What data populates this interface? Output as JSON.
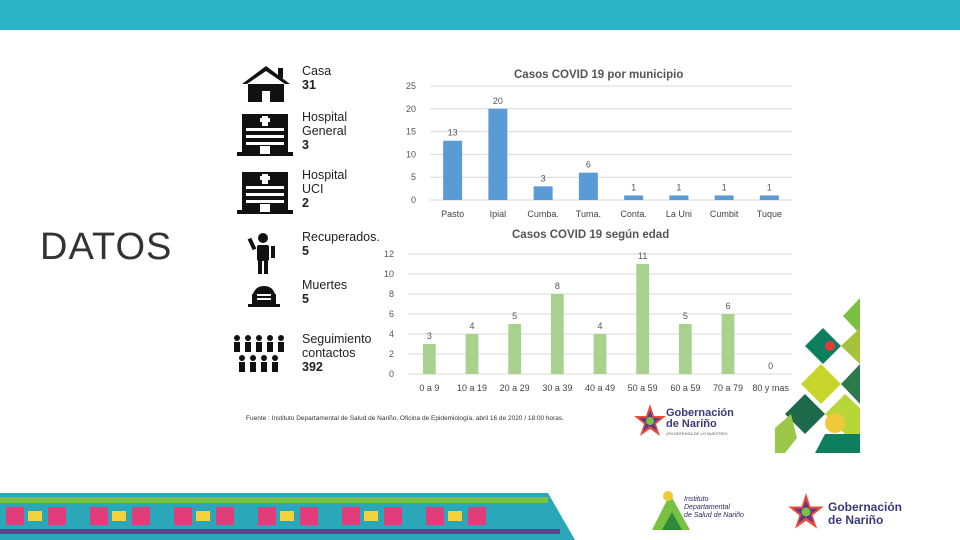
{
  "slide": {
    "title": "DATOS"
  },
  "stats": [
    {
      "icon": "house-icon",
      "label": "Casa",
      "value": "31"
    },
    {
      "icon": "hospital-icon",
      "label": "Hospital\nGeneral",
      "value": "3"
    },
    {
      "icon": "hospital-icon",
      "label": "Hospital\nUCI",
      "value": "2"
    },
    {
      "icon": "person-icon",
      "label": "Recuperados.",
      "value": "5"
    },
    {
      "icon": "tombstone-icon",
      "label": "Muertes",
      "value": "5"
    },
    {
      "icon": "group-icon",
      "label": "Seguimiento\ncontactos",
      "value": "392"
    }
  ],
  "chart_data": [
    {
      "type": "bar",
      "title": "Casos COVID 19 por municipio",
      "categories": [
        "Pasto",
        "Ipial",
        "Cumba.",
        "Tuma.",
        "Conta.",
        "La Uni",
        "Cumbit",
        "Tuque"
      ],
      "values": [
        13,
        20,
        3,
        6,
        1,
        1,
        1,
        1
      ],
      "ylim": [
        0,
        25
      ],
      "yticks": [
        0,
        5,
        10,
        15,
        20,
        25
      ],
      "color": "#5b9bd5",
      "grid": true,
      "legend": "none"
    },
    {
      "type": "bar",
      "title": "Casos COVID 19  según edad",
      "categories": [
        "0 a 9",
        "10 a 19",
        "20 a 29",
        "30 a 39",
        "40 a 49",
        "50 a 59",
        "60 a 59",
        "70 a 79",
        "80 y mas"
      ],
      "values": [
        3,
        4,
        5,
        8,
        4,
        11,
        5,
        6,
        0
      ],
      "ylim": [
        0,
        12
      ],
      "yticks": [
        0,
        2,
        4,
        6,
        8,
        10,
        12
      ],
      "color": "#a9d18e",
      "grid": true,
      "legend": "none"
    }
  ],
  "source": "Fuente : Instituto Departamental de Salud de Nariño. Oficina de Epidemiología. abril 16 de 2020 / 18:00 horas.",
  "logos": {
    "gobernacion_small": "Gobernación\nde Nariño",
    "gobernacion_small_sub": "¡EN DEFENSA DE LO NUESTRO!",
    "idsn": "Instituto\nDepartamental\nde Salud de Nariño",
    "gobernacion": "Gobernación\nde Nariño"
  },
  "colors": {
    "topbar": "#2bb3c6",
    "blue_bar": "#5b9bd5",
    "green_bar": "#a9d18e"
  }
}
